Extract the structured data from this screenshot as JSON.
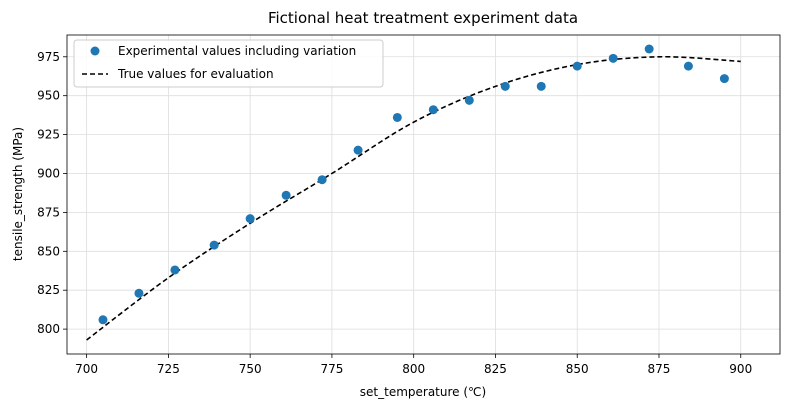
{
  "chart_data": {
    "type": "scatter",
    "title": "Fictional heat treatment experiment data",
    "xlabel": "set_temperature (℃)",
    "ylabel": "tensile_strength (MPa)",
    "xlim": [
      694,
      912
    ],
    "ylim": [
      784,
      989
    ],
    "xticks": [
      700,
      725,
      750,
      775,
      800,
      825,
      850,
      875,
      900
    ],
    "yticks": [
      800,
      825,
      850,
      875,
      900,
      925,
      950,
      975
    ],
    "grid": true,
    "legend_position": "upper-left",
    "colors": {
      "scatter": "#1f77b4",
      "line": "#000000"
    },
    "series": [
      {
        "name": "Experimental values including variation",
        "type": "scatter",
        "x": [
          705,
          716,
          727,
          739,
          750,
          761,
          772,
          783,
          795,
          806,
          817,
          828,
          839,
          850,
          861,
          872,
          884,
          895
        ],
        "y": [
          806,
          823,
          838,
          854,
          871,
          886,
          896,
          915,
          936,
          941,
          947,
          956,
          956,
          969,
          974,
          980,
          969,
          961
        ]
      },
      {
        "name": "True values for evaluation",
        "type": "line",
        "style": "dashed",
        "x": [
          700,
          725,
          750,
          775,
          800,
          825,
          850,
          875,
          900
        ],
        "y": [
          793,
          833,
          868,
          900,
          933,
          956,
          970,
          975,
          972
        ]
      }
    ]
  }
}
